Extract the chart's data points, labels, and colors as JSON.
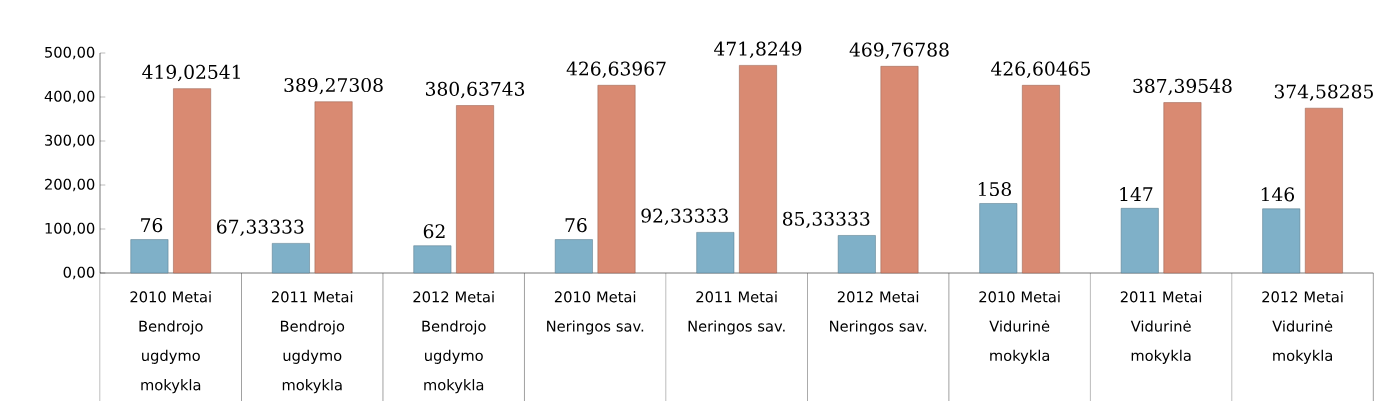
{
  "chart_data": {
    "type": "bar",
    "categories": [
      "2010 Metai Bendrojo ugdymo mokykla",
      "2011 Metai Bendrojo ugdymo mokykla",
      "2012 Metai Bendrojo ugdymo mokykla",
      "2010 Metai Neringos sav.",
      "2011 Metai Neringos sav.",
      "2012 Metai Neringos sav.",
      "2010 Metai Vidurinė mokykla",
      "2011 Metai Vidurinė mokykla",
      "2012 Metai Vidurinė mokykla"
    ],
    "series": [
      {
        "color": "#7fb0c8",
        "values": [
          76,
          67.33333,
          62,
          76,
          92.33333,
          85.33333,
          158,
          147,
          146
        ],
        "value_labels": [
          "76",
          "67,33333",
          "62",
          "76",
          "92,33333",
          "85,33333",
          "158",
          "147",
          "146"
        ]
      },
      {
        "color": "#d98a72",
        "values": [
          419.02541,
          389.27308,
          380.63743,
          426.63967,
          471.8249,
          469.76788,
          426.60465,
          387.39548,
          374.58285
        ],
        "value_labels": [
          "419,02541",
          "389,27308",
          "380,63743",
          "426,63967",
          "471,8249",
          "469,76788",
          "426,60465",
          "387,39548",
          "374,58285"
        ]
      }
    ],
    "ylim": [
      0,
      500
    ],
    "yticks": [
      {
        "value": 0,
        "label": "0,00"
      },
      {
        "value": 100,
        "label": "100,00"
      },
      {
        "value": 200,
        "label": "200,00"
      },
      {
        "value": 300,
        "label": "300,00"
      },
      {
        "value": 400,
        "label": "400,00"
      },
      {
        "value": 500,
        "label": "500,00"
      }
    ]
  }
}
